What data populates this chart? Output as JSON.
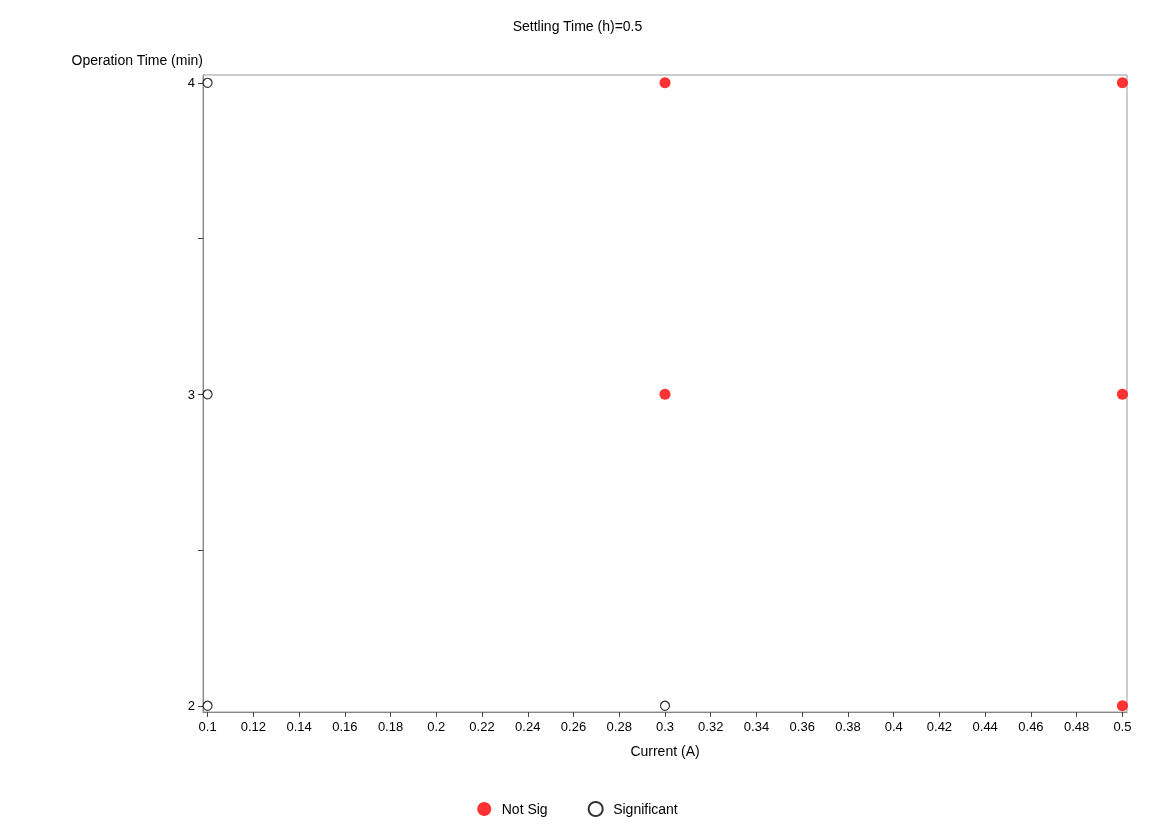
{
  "chart_data": {
    "type": "scatter",
    "title": "Settling Time (h)=0.5",
    "xlabel": "Current (A)",
    "ylabel": "Operation Time (min)",
    "series": [
      {
        "name": "Not Sig",
        "color": "#ff0000",
        "marker": "circle",
        "x": [
          0.3,
          0.3,
          0.5,
          0.5,
          0.5
        ],
        "values": [
          4,
          3,
          4,
          3,
          2
        ]
      },
      {
        "name": "Significant",
        "color": "#000000",
        "marker": "circle",
        "x": [
          0.1,
          0.1,
          0.1,
          0.3
        ],
        "values": [
          4,
          3,
          2,
          2
        ]
      }
    ],
    "xlim": [
      0.098,
      0.502
    ],
    "xticks": [
      0.1,
      0.12,
      0.14,
      0.16,
      0.18,
      0.2,
      0.22,
      0.24,
      0.26,
      0.28,
      0.3,
      0.32,
      0.34,
      0.36,
      0.38,
      0.4,
      0.42,
      0.44,
      0.46,
      0.48,
      0.5
    ],
    "ylim": [
      1.98,
      4.025
    ],
    "yticks": [
      2,
      {
        "value": 2.5,
        "label": null
      },
      3,
      {
        "value": 3.5,
        "label": null
      },
      4
    ],
    "grid": false,
    "legend": "bottom"
  }
}
